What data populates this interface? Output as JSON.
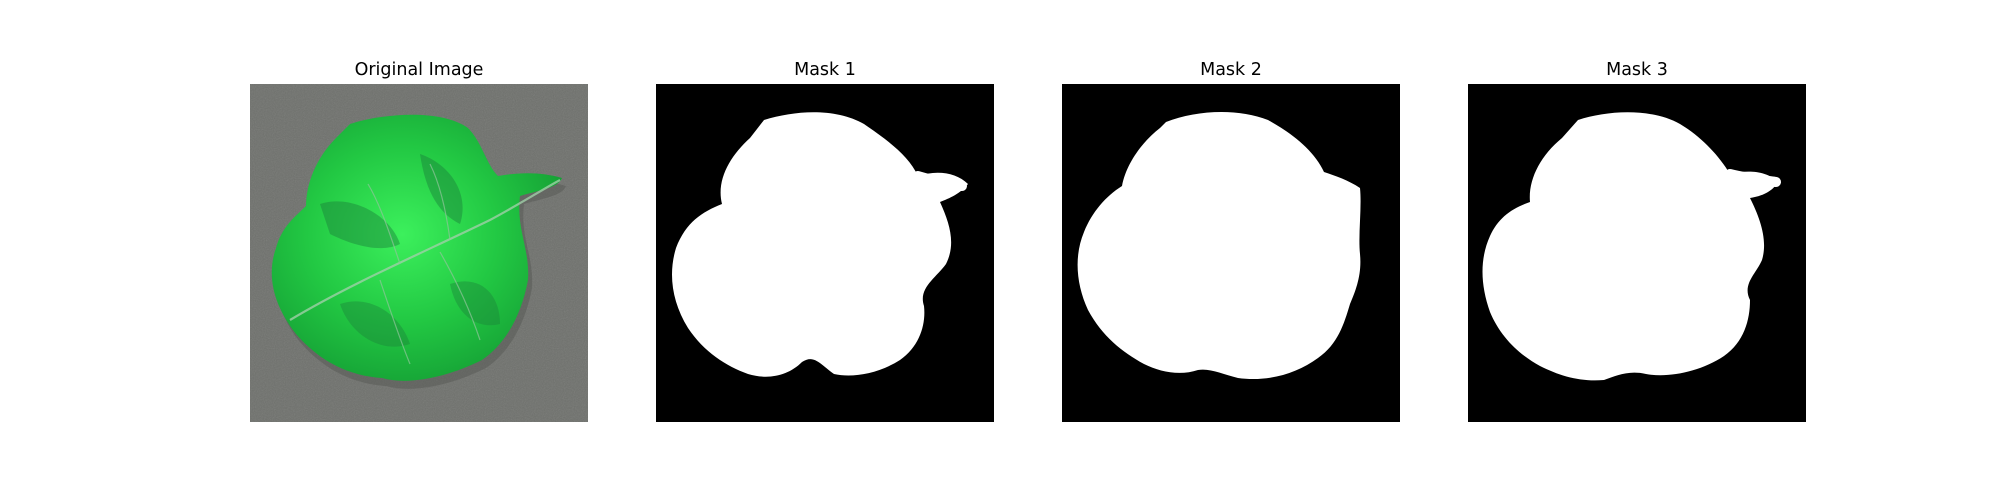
{
  "panels": [
    {
      "title": "Original Image",
      "kind": "photo"
    },
    {
      "title": "Mask 1",
      "kind": "mask"
    },
    {
      "title": "Mask 2",
      "kind": "mask"
    },
    {
      "title": "Mask 3",
      "kind": "mask"
    }
  ],
  "colors": {
    "background": "#ffffff",
    "photo_backdrop": "#6e706c",
    "leaf_light": "#2be24a",
    "leaf_dark": "#1a8a3a",
    "mask_background": "#000000",
    "mask_foreground": "#ffffff"
  }
}
